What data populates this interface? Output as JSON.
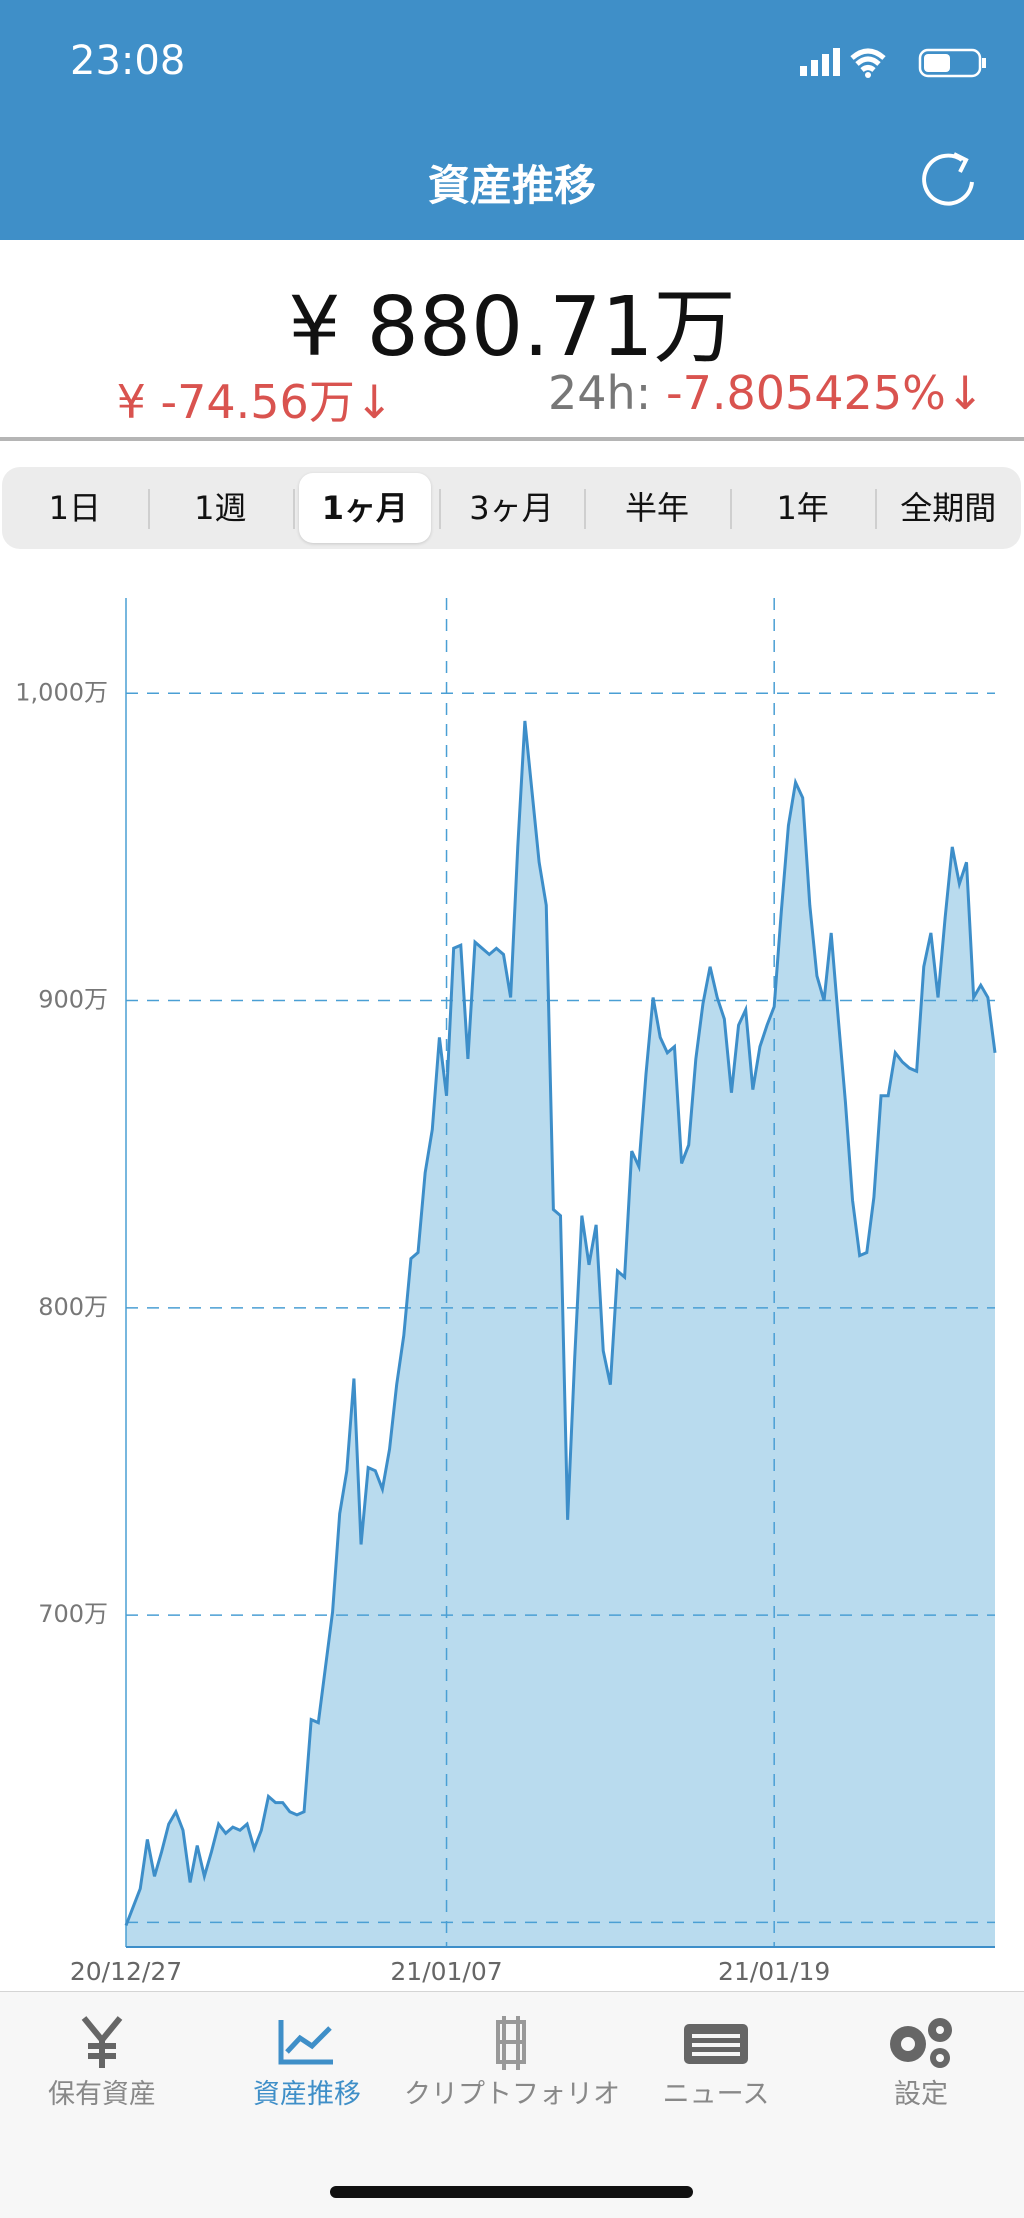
{
  "status_bar": {
    "time": "23:08"
  },
  "header": {
    "title": "資産推移"
  },
  "summary": {
    "total": "¥ 880.71万",
    "change": "¥ -74.56万↓",
    "change_24h_label": "24h:",
    "change_24h": "-7.805425%↓"
  },
  "periods": {
    "options": [
      "1日",
      "1週",
      "1ヶ月",
      "3ヶ月",
      "半年",
      "1年",
      "全期間"
    ],
    "selected": "1ヶ月"
  },
  "chart_data": {
    "type": "area",
    "color": "#3d8ec9",
    "fill": "#b9dbee",
    "grid_color": "#4a9fd4",
    "categories": [
      "20/12/27",
      null,
      null,
      null,
      null,
      null,
      null,
      null,
      null,
      null,
      null,
      null,
      null,
      null,
      null,
      null,
      null,
      null,
      null,
      null,
      null,
      null,
      null,
      null,
      null,
      null,
      null,
      null,
      null,
      null,
      null,
      null,
      null,
      null,
      null,
      null,
      null,
      null,
      null,
      null,
      null,
      null,
      null,
      null,
      null,
      "21/01/07",
      null,
      null,
      null,
      null,
      null,
      null,
      null,
      null,
      null,
      null,
      null,
      null,
      null,
      null,
      null,
      null,
      null,
      null,
      null,
      null,
      null,
      null,
      null,
      null,
      null,
      null,
      null,
      null,
      null,
      null,
      null,
      null,
      null,
      null,
      null,
      null,
      null,
      null,
      null,
      null,
      null,
      null,
      null,
      null,
      null,
      "21/01/19",
      null,
      null,
      null,
      null,
      null,
      null,
      null,
      null,
      null,
      null,
      null,
      null,
      null,
      null,
      null,
      null,
      null,
      null,
      null,
      null,
      null,
      null,
      null,
      null,
      null,
      null,
      null,
      null,
      null,
      null,
      null
    ],
    "values": [
      599,
      605,
      611,
      627,
      615,
      623,
      632,
      636,
      630,
      613,
      625,
      615,
      623,
      632,
      629,
      631,
      630,
      632,
      624,
      630,
      641,
      639,
      639,
      636,
      635,
      636,
      666,
      665,
      683,
      701,
      733,
      747,
      777,
      723,
      748,
      747,
      741,
      754,
      775,
      791,
      816,
      818,
      844,
      858,
      888,
      869,
      917,
      918,
      881,
      919,
      917,
      915,
      917,
      915,
      901,
      950,
      991,
      968,
      945,
      931,
      832,
      830,
      731,
      784,
      830,
      814,
      827,
      786,
      775,
      812,
      810,
      851,
      846,
      876,
      901,
      888,
      883,
      885,
      847,
      853,
      881,
      899,
      911,
      901,
      894,
      870,
      892,
      897,
      871,
      885,
      892,
      898,
      929,
      957,
      971,
      966,
      931,
      908,
      900,
      922,
      894,
      867,
      835,
      817,
      818,
      836,
      869,
      869,
      883,
      880,
      878,
      877,
      911,
      922,
      901,
      927,
      950,
      938,
      945,
      901,
      905,
      901,
      883
    ],
    "ylim": [
      592,
      1031
    ],
    "yticks": [
      {
        "value": 600,
        "label": null
      },
      {
        "value": 700,
        "label": "700万"
      },
      {
        "value": 800,
        "label": "800万"
      },
      {
        "value": 900,
        "label": "900万"
      },
      {
        "value": 1000,
        "label": "1,000万"
      }
    ],
    "grid": true
  },
  "tab_bar": {
    "items": [
      "保有資産",
      "資産推移",
      "クリプトフォリオ",
      "ニュース",
      "設定"
    ],
    "selected": "資産推移"
  }
}
